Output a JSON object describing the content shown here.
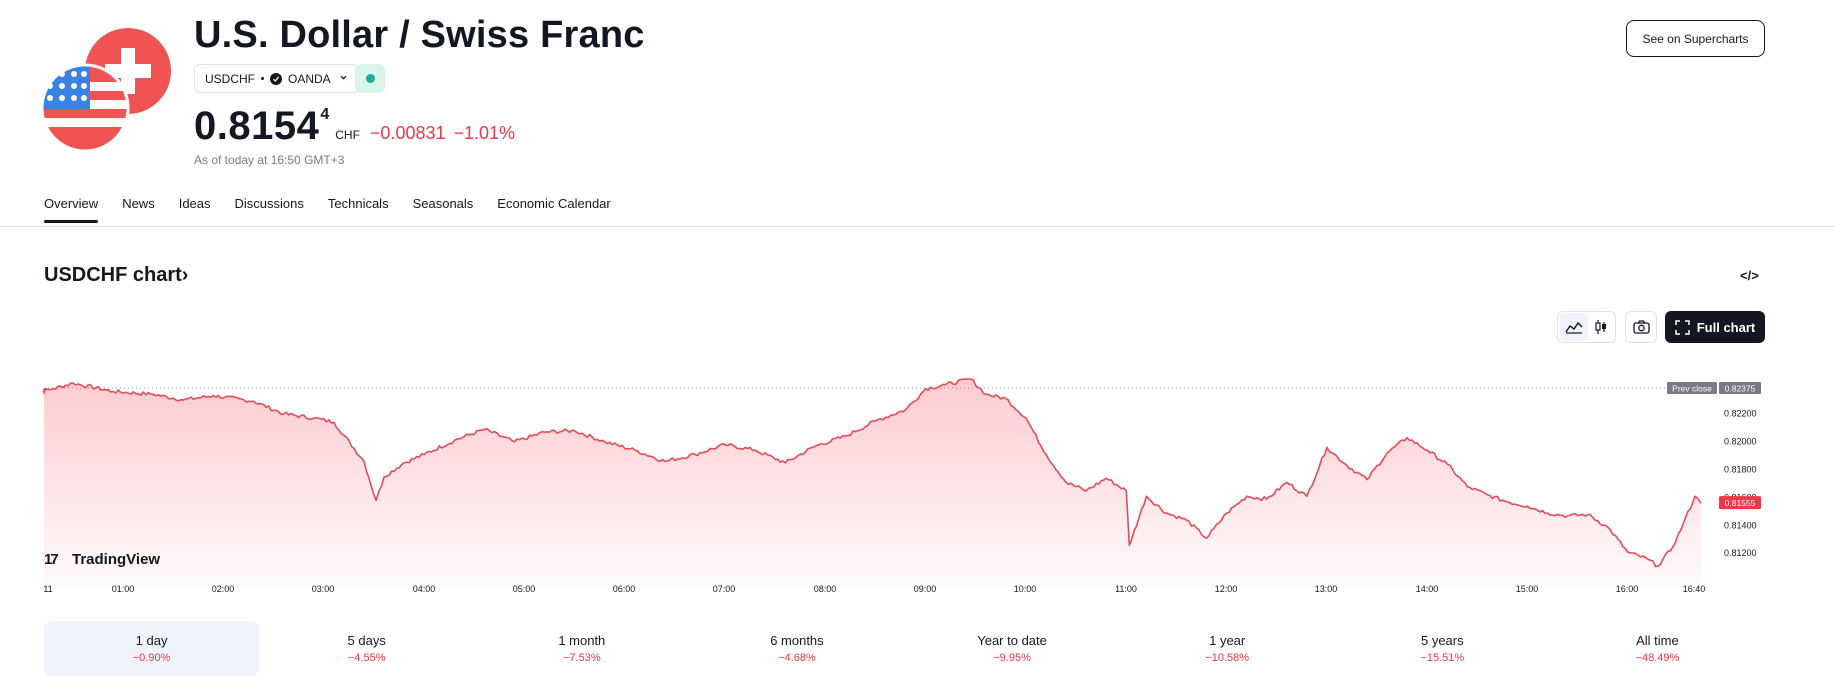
{
  "header": {
    "title": "U.S. Dollar / Swiss Franc",
    "symbol": "USDCHF",
    "exchange": "OANDA",
    "price_main": "0.8154",
    "price_sup": "4",
    "currency": "CHF",
    "change_abs": "−0.00831",
    "change_pct": "−1.01%",
    "as_of": "As of today at 16:50 GMT+3",
    "supercharts_label": "See on Supercharts"
  },
  "tabs": [
    "Overview",
    "News",
    "Ideas",
    "Discussions",
    "Technicals",
    "Seasonals",
    "Economic Calendar"
  ],
  "chart_section": {
    "title": "USDCHF chart",
    "title_chevron": "›",
    "embed_label": "</>",
    "full_chart_label": "Full chart",
    "brand": "TradingView",
    "brand_logo": "17"
  },
  "icons": [
    "area-chart-icon",
    "candles-icon",
    "camera-icon",
    "fullscreen-icon",
    "code-icon",
    "flag-icon",
    "verified-icon",
    "chevron-down-icon"
  ],
  "colors": {
    "down": "#f23645",
    "line": "#e84a57",
    "live_dot": "#22ab94",
    "prev_close_label_bg": "#787b86",
    "dark": "#131722"
  },
  "chart_data": {
    "type": "area",
    "title": "",
    "xlabel": "",
    "ylabel": "",
    "x_ticks": [
      "11",
      "01:00",
      "02:00",
      "03:00",
      "04:00",
      "05:00",
      "06:00",
      "07:00",
      "08:00",
      "09:00",
      "10:00",
      "11:00",
      "12:00",
      "13:00",
      "14:00",
      "15:00",
      "16:00",
      "16:40"
    ],
    "y_ticks": [
      "0.82200",
      "0.82000",
      "0.81800",
      "0.81600",
      "0.81400",
      "0.81200"
    ],
    "ylim": [
      0.8103,
      0.8259
    ],
    "prev_close": {
      "label": "Prev close",
      "value": "0.82375",
      "y": 0.82375
    },
    "last_price": {
      "value": "0.81555",
      "y": 0.81555
    },
    "x_unit": "hours since 00:00",
    "x": [
      0,
      0.1,
      0.3,
      0.5,
      0.9,
      1.3,
      1.6,
      1.9,
      2.3,
      2.6,
      2.9,
      3.1,
      3.4,
      3.52,
      3.6,
      3.8,
      4.0,
      4.3,
      4.6,
      4.9,
      5.2,
      5.5,
      5.8,
      6.1,
      6.4,
      6.7,
      7.0,
      7.3,
      7.6,
      7.9,
      8.2,
      8.5,
      8.8,
      9.0,
      9.2,
      9.45,
      9.6,
      9.8,
      10.0,
      10.2,
      10.4,
      10.6,
      10.8,
      11.0,
      11.03,
      11.2,
      11.4,
      11.6,
      11.8,
      12.0,
      12.2,
      12.4,
      12.6,
      12.8,
      13.0,
      13.2,
      13.4,
      13.6,
      13.8,
      14.0,
      14.2,
      14.4,
      14.6,
      14.8,
      15.0,
      15.2,
      15.4,
      15.6,
      15.8,
      16.0,
      16.2,
      16.3,
      16.45,
      16.55,
      16.67,
      16.73
    ],
    "y": [
      0.8237,
      0.8234,
      0.8237,
      0.8241,
      0.8235,
      0.8233,
      0.8229,
      0.8232,
      0.8228,
      0.8219,
      0.8216,
      0.8213,
      0.8185,
      0.8157,
      0.8174,
      0.8184,
      0.819,
      0.82,
      0.8208,
      0.8199,
      0.8206,
      0.8207,
      0.8199,
      0.8193,
      0.8185,
      0.819,
      0.8197,
      0.8193,
      0.8184,
      0.8196,
      0.8203,
      0.8214,
      0.8222,
      0.8237,
      0.824,
      0.8244,
      0.8233,
      0.823,
      0.8216,
      0.819,
      0.817,
      0.8164,
      0.8173,
      0.8164,
      0.8125,
      0.816,
      0.8148,
      0.8143,
      0.813,
      0.8148,
      0.816,
      0.8158,
      0.817,
      0.816,
      0.8195,
      0.8182,
      0.8172,
      0.8191,
      0.8202,
      0.8193,
      0.8183,
      0.8167,
      0.8161,
      0.8156,
      0.8153,
      0.8148,
      0.8146,
      0.8147,
      0.8138,
      0.812,
      0.8115,
      0.811,
      0.8124,
      0.814,
      0.816,
      0.8155
    ]
  },
  "periods": [
    {
      "label": "1 day",
      "value": "−0.90%"
    },
    {
      "label": "5 days",
      "value": "−4.55%"
    },
    {
      "label": "1 month",
      "value": "−7.53%"
    },
    {
      "label": "6 months",
      "value": "−4.68%"
    },
    {
      "label": "Year to date",
      "value": "−9.95%"
    },
    {
      "label": "1 year",
      "value": "−10.58%"
    },
    {
      "label": "5 years",
      "value": "−15.51%"
    },
    {
      "label": "All time",
      "value": "−48.49%"
    }
  ]
}
